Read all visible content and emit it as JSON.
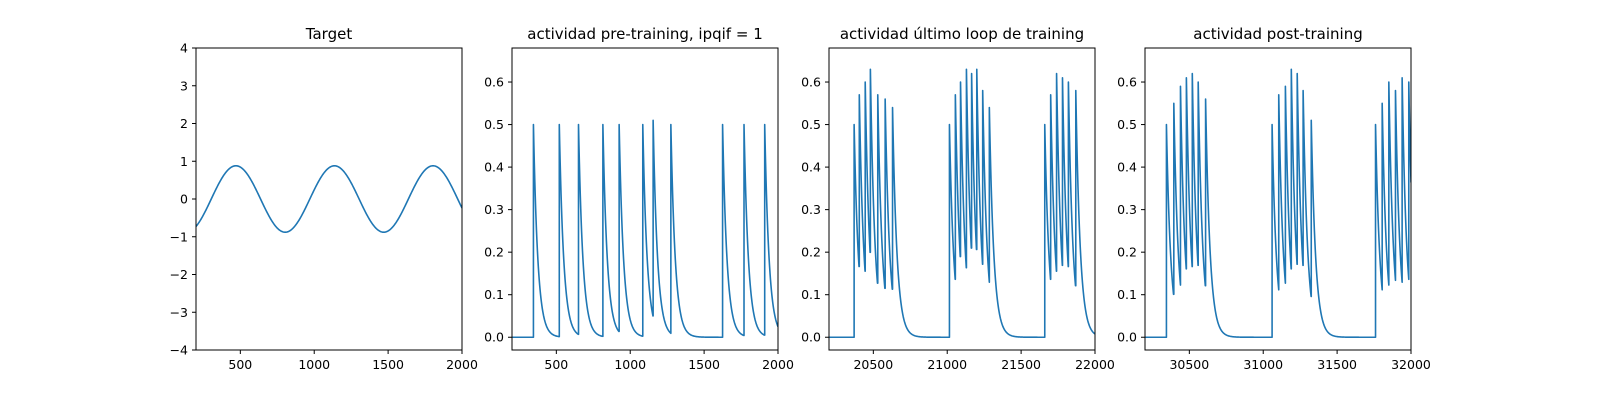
{
  "chart_data": [
    {
      "type": "line",
      "title": "Target",
      "xlim": [
        200,
        2000
      ],
      "ylim": [
        -4,
        4
      ],
      "xticks": [
        500,
        1000,
        1500,
        2000
      ],
      "yticks": [
        -4,
        -3,
        -2,
        -1,
        0,
        1,
        2,
        3,
        4
      ],
      "series": [
        {
          "color": "#1f77b4",
          "amplitude": 0.88,
          "period": 667,
          "peak_x": [
            470,
            1137,
            1803
          ],
          "trough_x": [
            803,
            1470
          ]
        }
      ]
    },
    {
      "type": "line",
      "title": "actividad pre-training, ipqif = 1",
      "xlim": [
        200,
        2000
      ],
      "ylim": [
        -0.03,
        0.68
      ],
      "xticks": [
        500,
        1000,
        1500,
        2000
      ],
      "yticks": [
        0.0,
        0.1,
        0.2,
        0.3,
        0.4,
        0.5,
        0.6
      ],
      "series": [
        {
          "color": "#1f77b4",
          "baseline": 0.0,
          "decay": 30,
          "spikes": [
            [
              345,
              0.5
            ],
            [
              520,
              0.5
            ],
            [
              650,
              0.5
            ],
            [
              815,
              0.5
            ],
            [
              925,
              0.5
            ],
            [
              1085,
              0.5
            ],
            [
              1155,
              0.51
            ],
            [
              1275,
              0.5
            ],
            [
              1625,
              0.5
            ],
            [
              1770,
              0.5
            ],
            [
              1910,
              0.5
            ]
          ]
        }
      ]
    },
    {
      "type": "line",
      "title": "actividad último loop de training",
      "xlim": [
        20200,
        22000
      ],
      "ylim": [
        -0.03,
        0.68
      ],
      "xticks": [
        20500,
        21000,
        21500,
        22000
      ],
      "yticks": [
        0.0,
        0.1,
        0.2,
        0.3,
        0.4,
        0.5,
        0.6
      ],
      "series": [
        {
          "color": "#1f77b4",
          "baseline": 0.0,
          "decay": 30,
          "spikes": [
            [
              20370,
              0.5
            ],
            [
              20405,
              0.57
            ],
            [
              20445,
              0.6
            ],
            [
              20480,
              0.63
            ],
            [
              20530,
              0.57
            ],
            [
              20580,
              0.56
            ],
            [
              20630,
              0.54
            ],
            [
              21015,
              0.5
            ],
            [
              21055,
              0.57
            ],
            [
              21090,
              0.6
            ],
            [
              21130,
              0.63
            ],
            [
              21165,
              0.62
            ],
            [
              21200,
              0.63
            ],
            [
              21240,
              0.58
            ],
            [
              21285,
              0.54
            ],
            [
              21660,
              0.5
            ],
            [
              21700,
              0.57
            ],
            [
              21740,
              0.62
            ],
            [
              21780,
              0.61
            ],
            [
              21820,
              0.6
            ],
            [
              21870,
              0.58
            ]
          ]
        }
      ]
    },
    {
      "type": "line",
      "title": "actividad post-training",
      "xlim": [
        30200,
        32000
      ],
      "ylim": [
        -0.03,
        0.68
      ],
      "xticks": [
        30500,
        31000,
        31500,
        32000
      ],
      "yticks": [
        0.0,
        0.1,
        0.2,
        0.3,
        0.4,
        0.5,
        0.6
      ],
      "series": [
        {
          "color": "#1f77b4",
          "baseline": 0.0,
          "decay": 30,
          "spikes": [
            [
              30345,
              0.5
            ],
            [
              30395,
              0.55
            ],
            [
              30440,
              0.59
            ],
            [
              30480,
              0.61
            ],
            [
              30520,
              0.62
            ],
            [
              30560,
              0.6
            ],
            [
              30610,
              0.56
            ],
            [
              31060,
              0.5
            ],
            [
              31105,
              0.57
            ],
            [
              31150,
              0.59
            ],
            [
              31190,
              0.63
            ],
            [
              31230,
              0.62
            ],
            [
              31270,
              0.58
            ],
            [
              31325,
              0.51
            ],
            [
              31760,
              0.5
            ],
            [
              31805,
              0.55
            ],
            [
              31850,
              0.6
            ],
            [
              31895,
              0.58
            ],
            [
              31940,
              0.61
            ],
            [
              31985,
              0.6
            ]
          ]
        }
      ]
    }
  ]
}
